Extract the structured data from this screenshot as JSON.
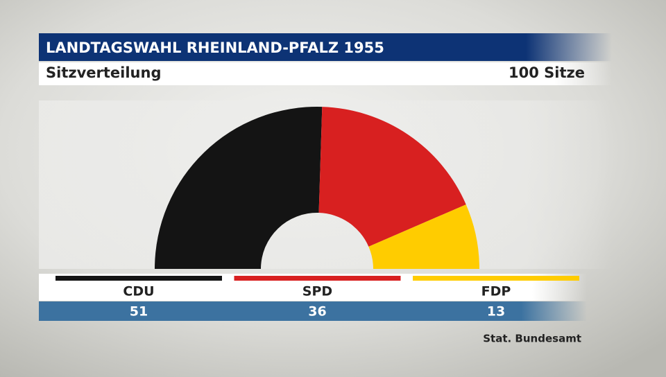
{
  "chart_data": {
    "type": "semicircle",
    "title": "LANDTAGSWAHL RHEINLAND-PFALZ 1955",
    "subtitle": "Sitzverteilung",
    "total_label": "100 Sitze",
    "categories": [
      "CDU",
      "SPD",
      "FDP"
    ],
    "values": [
      51,
      36,
      13
    ],
    "colors": [
      "#141414",
      "#d82020",
      "#ffcc00"
    ],
    "source": "Stat. Bundesamt"
  }
}
